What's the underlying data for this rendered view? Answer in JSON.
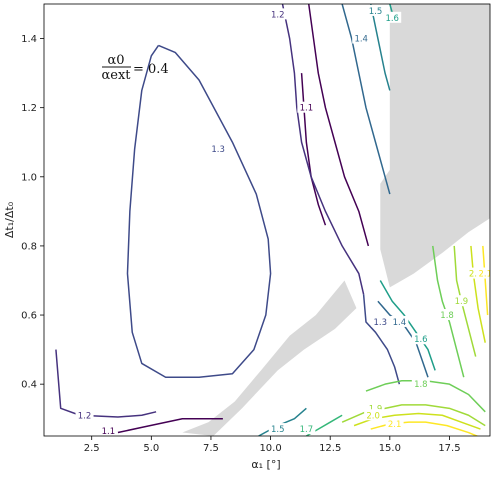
{
  "chart_data": {
    "type": "contour",
    "title": "",
    "xlabel": "α₁ [°]",
    "ylabel": "Δt₁/Δt₀",
    "xlim": [
      0.5,
      19.2
    ],
    "ylim": [
      0.25,
      1.5
    ],
    "x_ticks": [
      "2.5",
      "5.0",
      "7.5",
      "10.0",
      "12.5",
      "15.0",
      "17.5"
    ],
    "x_tick_values": [
      2.5,
      5.0,
      7.5,
      10.0,
      12.5,
      15.0,
      17.5
    ],
    "y_ticks": [
      "0.4",
      "0.6",
      "0.8",
      "1.0",
      "1.2",
      "1.4"
    ],
    "y_tick_values": [
      0.4,
      0.6,
      0.8,
      1.0,
      1.2,
      1.4
    ],
    "annotation": {
      "numerator": "α0",
      "denominator": "αext",
      "value": "= 0.4",
      "x": 2.5,
      "y": 1.3
    },
    "masked_region_color": "#d9d9d9",
    "colormap": "viridis",
    "levels": [
      {
        "level": "1.1",
        "color": "#440154",
        "segments": [
          [
            [
              3.6,
              0.26
            ],
            [
              4.6,
              0.275
            ],
            [
              6.3,
              0.3
            ],
            [
              8.0,
              0.3
            ]
          ],
          [
            [
              11.3,
              1.3
            ],
            [
              11.4,
              1.2
            ],
            [
              11.5,
              1.1
            ],
            [
              11.7,
              1.0
            ],
            [
              12.0,
              0.92
            ],
            [
              12.3,
              0.86
            ]
          ],
          [
            [
              11.6,
              1.5
            ],
            [
              11.8,
              1.4
            ],
            [
              12.0,
              1.3
            ],
            [
              12.3,
              1.2
            ],
            [
              12.7,
              1.1
            ],
            [
              13.1,
              1.0
            ],
            [
              13.7,
              0.9
            ],
            [
              14.1,
              0.8
            ]
          ]
        ],
        "labels": [
          {
            "x": 3.2,
            "y": 0.265
          },
          {
            "x": 11.5,
            "y": 1.2
          }
        ]
      },
      {
        "level": "1.2",
        "color": "#46327e",
        "segments": [
          [
            [
              1.0,
              0.5
            ],
            [
              1.2,
              0.33
            ],
            [
              2.0,
              0.31
            ],
            [
              3.6,
              0.305
            ],
            [
              4.6,
              0.31
            ],
            [
              5.2,
              0.32
            ]
          ],
          [
            [
              10.5,
              1.5
            ],
            [
              10.8,
              1.4
            ],
            [
              11.0,
              1.3
            ],
            [
              11.1,
              1.2
            ],
            [
              11.3,
              1.1
            ],
            [
              11.7,
              1.0
            ],
            [
              12.3,
              0.9
            ],
            [
              13.0,
              0.8
            ],
            [
              13.7,
              0.72
            ],
            [
              13.9,
              0.66
            ]
          ]
        ],
        "labels": [
          {
            "x": 2.2,
            "y": 0.31
          },
          {
            "x": 10.3,
            "y": 1.47
          }
        ]
      },
      {
        "level": "1.3",
        "color": "#3e4a89",
        "segments": [
          [
            [
              5.3,
              1.38
            ],
            [
              6.0,
              1.36
            ],
            [
              7.0,
              1.28
            ],
            [
              8.4,
              1.1
            ],
            [
              9.4,
              0.95
            ],
            [
              9.9,
              0.82
            ],
            [
              10.0,
              0.72
            ],
            [
              9.8,
              0.6
            ],
            [
              9.3,
              0.5
            ],
            [
              8.4,
              0.43
            ],
            [
              7.0,
              0.42
            ],
            [
              5.6,
              0.42
            ],
            [
              4.6,
              0.46
            ],
            [
              4.2,
              0.55
            ],
            [
              4.0,
              0.72
            ],
            [
              4.1,
              0.9
            ],
            [
              4.3,
              1.08
            ],
            [
              4.6,
              1.25
            ],
            [
              5.0,
              1.35
            ],
            [
              5.3,
              1.38
            ]
          ],
          [
            [
              13.9,
              0.66
            ],
            [
              14.0,
              0.58
            ],
            [
              14.4,
              0.55
            ],
            [
              14.9,
              0.5
            ],
            [
              15.2,
              0.45
            ],
            [
              15.4,
              0.4
            ]
          ]
        ],
        "labels": [
          {
            "x": 7.8,
            "y": 1.08
          },
          {
            "x": 14.6,
            "y": 0.58
          }
        ]
      },
      {
        "level": "1.4",
        "color": "#31688e",
        "segments": [
          [
            [
              13.0,
              1.5
            ],
            [
              13.4,
              1.4
            ],
            [
              13.7,
              1.3
            ],
            [
              14.0,
              1.2
            ],
            [
              14.4,
              1.1
            ],
            [
              14.8,
              1.0
            ],
            [
              15.0,
              0.95
            ]
          ],
          [
            [
              14.5,
              0.64
            ],
            [
              15.0,
              0.6
            ],
            [
              15.6,
              0.57
            ],
            [
              16.1,
              0.52
            ],
            [
              16.4,
              0.46
            ],
            [
              16.6,
              0.42
            ]
          ]
        ],
        "labels": [
          {
            "x": 13.8,
            "y": 1.4
          },
          {
            "x": 15.4,
            "y": 0.58
          }
        ]
      },
      {
        "level": "1.5",
        "color": "#26828e",
        "segments": [
          [
            [
              14.2,
              1.5
            ],
            [
              14.5,
              1.4
            ],
            [
              14.8,
              1.3
            ],
            [
              15.0,
              1.25
            ]
          ],
          [
            [
              9.5,
              0.25
            ],
            [
              10.3,
              0.28
            ],
            [
              11.0,
              0.3
            ],
            [
              11.5,
              0.33
            ]
          ]
        ],
        "labels": [
          {
            "x": 14.4,
            "y": 1.48
          },
          {
            "x": 10.3,
            "y": 0.27
          }
        ]
      },
      {
        "level": "1.6",
        "color": "#1f9e89",
        "segments": [
          [
            [
              14.8,
              1.55
            ],
            [
              15.0,
              1.5
            ],
            [
              15.2,
              1.45
            ]
          ],
          [
            [
              14.6,
              0.7
            ],
            [
              15.1,
              0.64
            ],
            [
              15.6,
              0.6
            ],
            [
              16.1,
              0.55
            ],
            [
              16.6,
              0.5
            ],
            [
              16.9,
              0.44
            ]
          ]
        ],
        "labels": [
          {
            "x": 15.1,
            "y": 1.46
          },
          {
            "x": 16.3,
            "y": 0.53
          }
        ]
      },
      {
        "level": "1.7",
        "color": "#35b779",
        "segments": [
          [
            [
              11.5,
              0.25
            ],
            [
              12.0,
              0.27
            ],
            [
              12.5,
              0.29
            ],
            [
              13.0,
              0.31
            ]
          ]
        ],
        "labels": [
          {
            "x": 11.5,
            "y": 0.27
          }
        ]
      },
      {
        "level": "1.8",
        "color": "#6ece58",
        "segments": [
          [
            [
              14.0,
              0.38
            ],
            [
              14.8,
              0.4
            ],
            [
              15.5,
              0.41
            ],
            [
              16.5,
              0.41
            ],
            [
              17.5,
              0.4
            ],
            [
              18.3,
              0.37
            ],
            [
              19.0,
              0.32
            ]
          ],
          [
            [
              16.8,
              0.8
            ],
            [
              17.0,
              0.7
            ],
            [
              17.2,
              0.64
            ],
            [
              17.5,
              0.58
            ],
            [
              17.8,
              0.5
            ],
            [
              18.1,
              0.42
            ]
          ]
        ],
        "labels": [
          {
            "x": 16.3,
            "y": 0.4
          },
          {
            "x": 17.4,
            "y": 0.6
          }
        ]
      },
      {
        "level": "1.9",
        "color": "#a0da39",
        "segments": [
          [
            [
              13.0,
              0.29
            ],
            [
              14.0,
              0.32
            ],
            [
              14.8,
              0.33
            ],
            [
              15.5,
              0.34
            ],
            [
              16.5,
              0.34
            ],
            [
              17.5,
              0.33
            ],
            [
              18.3,
              0.31
            ],
            [
              19.0,
              0.28
            ]
          ],
          [
            [
              17.7,
              0.8
            ],
            [
              17.8,
              0.7
            ],
            [
              18.0,
              0.64
            ],
            [
              18.3,
              0.56
            ],
            [
              18.6,
              0.48
            ]
          ]
        ],
        "labels": [
          {
            "x": 14.4,
            "y": 0.33
          },
          {
            "x": 18.0,
            "y": 0.64
          }
        ]
      },
      {
        "level": "2.0",
        "color": "#cde11d",
        "segments": [
          [
            [
              13.5,
              0.28
            ],
            [
              14.3,
              0.3
            ],
            [
              15.2,
              0.31
            ],
            [
              16.2,
              0.315
            ],
            [
              17.2,
              0.31
            ],
            [
              18.0,
              0.29
            ],
            [
              18.8,
              0.27
            ]
          ],
          [
            [
              18.4,
              0.8
            ],
            [
              18.5,
              0.72
            ],
            [
              18.7,
              0.62
            ],
            [
              19.0,
              0.52
            ]
          ]
        ],
        "labels": [
          {
            "x": 14.3,
            "y": 0.31
          },
          {
            "x": 18.6,
            "y": 0.72
          }
        ]
      },
      {
        "level": "2.1",
        "color": "#fde725",
        "segments": [
          [
            [
              14.2,
              0.27
            ],
            [
              15.0,
              0.285
            ],
            [
              15.8,
              0.29
            ],
            [
              16.5,
              0.29
            ],
            [
              17.4,
              0.28
            ],
            [
              18.3,
              0.26
            ],
            [
              19.0,
              0.24
            ]
          ],
          [
            [
              18.9,
              0.8
            ],
            [
              19.0,
              0.7
            ],
            [
              19.1,
              0.6
            ]
          ]
        ],
        "labels": [
          {
            "x": 15.2,
            "y": 0.285
          },
          {
            "x": 19.0,
            "y": 0.72
          }
        ]
      }
    ]
  }
}
